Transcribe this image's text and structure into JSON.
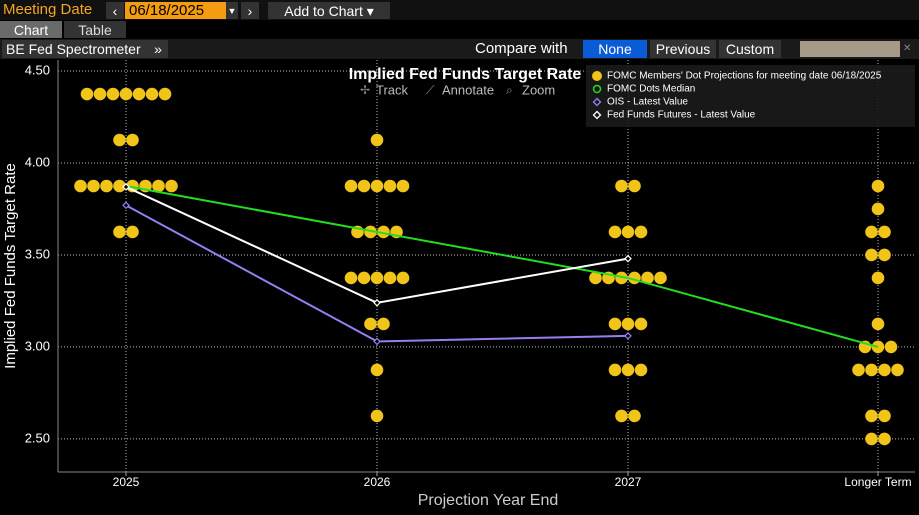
{
  "toolbar": {
    "meeting_label": "Meeting Date",
    "meeting_date": "06/18/2025",
    "add_to_chart": "Add to Chart",
    "tabs": [
      "Chart",
      "Table"
    ],
    "view": "BE Fed Spectrometer",
    "compare_label": "Compare with",
    "compare_options": [
      "None",
      "Previous",
      "Custom"
    ],
    "chart_tools": [
      "Track",
      "Annotate",
      "Zoom"
    ]
  },
  "chart_data": {
    "type": "line",
    "title": "Implied Fed Funds Target Rate",
    "x_label": "Projection Year End",
    "y_label": "Implied Fed Funds Target Rate",
    "categories": [
      "2025",
      "2026",
      "2027",
      "Longer Term"
    ],
    "ylim": [
      2.32,
      4.56
    ],
    "yticks": [
      {
        "value": 2.5,
        "label": "2.50"
      },
      {
        "value": 3.0,
        "label": "3.00"
      },
      {
        "value": 3.5,
        "label": "3.50"
      },
      {
        "value": 4.0,
        "label": "4.00"
      },
      {
        "value": 4.5,
        "label": "4.50"
      }
    ],
    "grid": true,
    "series": [
      {
        "name": "FOMC Members' Dot Projections for meeting date 06/18/2025",
        "type": "scatter",
        "color": "#f0c419",
        "values": [
          [
            4.375,
            4.375,
            4.375,
            4.375,
            4.375,
            4.375,
            4.375,
            4.125,
            4.125,
            3.875,
            3.875,
            3.875,
            3.875,
            3.875,
            3.875,
            3.875,
            3.875,
            3.625,
            3.625
          ],
          [
            4.125,
            3.875,
            3.875,
            3.875,
            3.875,
            3.875,
            3.625,
            3.625,
            3.625,
            3.625,
            3.375,
            3.375,
            3.375,
            3.375,
            3.375,
            3.125,
            3.125,
            2.875,
            2.625
          ],
          [
            3.875,
            3.875,
            3.625,
            3.625,
            3.625,
            3.375,
            3.375,
            3.375,
            3.375,
            3.375,
            3.375,
            3.125,
            3.125,
            3.125,
            2.875,
            2.875,
            2.875,
            2.625,
            2.625
          ],
          [
            3.875,
            3.75,
            3.625,
            3.625,
            3.5,
            3.5,
            3.375,
            3.125,
            3.0,
            3.0,
            3.0,
            2.875,
            2.875,
            2.875,
            2.875,
            2.625,
            2.625,
            2.5,
            2.5
          ]
        ]
      },
      {
        "name": "FOMC Dots Median",
        "type": "line",
        "color": "#22dd22",
        "values": [
          3.875,
          3.625,
          3.375,
          3.0
        ]
      },
      {
        "name": "OIS - Latest Value",
        "type": "line",
        "color": "#9a7ef0",
        "values": [
          3.77,
          3.03,
          3.06,
          null
        ]
      },
      {
        "name": "Fed Funds Futures - Latest Value",
        "type": "line",
        "color": "#ffffff",
        "values": [
          3.87,
          3.24,
          3.48,
          null
        ]
      }
    ]
  }
}
